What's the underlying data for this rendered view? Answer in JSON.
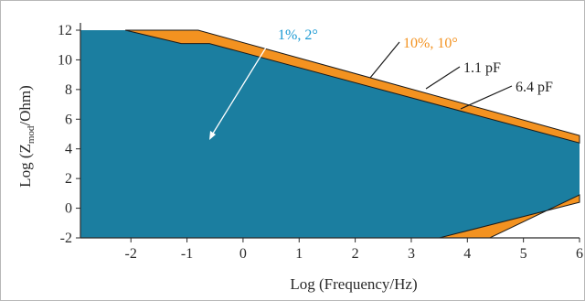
{
  "chart_data": {
    "type": "area",
    "xlabel": "Log (Frequency/Hz)",
    "ylabel_main": "Log (Z",
    "ylabel_sub": "mod",
    "ylabel_end": "/Ohm)",
    "xlim": [
      -2.9,
      6
    ],
    "ylim": [
      -2,
      12
    ],
    "xticks": [
      -2,
      -1,
      0,
      1,
      2,
      3,
      4,
      5,
      6
    ],
    "yticks": [
      -2,
      0,
      2,
      4,
      6,
      8,
      10,
      12
    ],
    "series": [
      {
        "name": "1%, 2°",
        "color": "#1b7ea0",
        "polygon": [
          [
            -2.9,
            12
          ],
          [
            -2.1,
            12
          ],
          [
            -1.1,
            11.1
          ],
          [
            -0.6,
            11.1
          ],
          [
            6,
            4.4
          ],
          [
            6,
            0.4
          ],
          [
            3.5,
            -2
          ],
          [
            -2.9,
            -2
          ]
        ]
      },
      {
        "name": "10%, 10°",
        "color": "#f39220",
        "polygon_upper": [
          [
            -2.1,
            12
          ],
          [
            -0.8,
            12
          ],
          [
            6,
            4.9
          ],
          [
            6,
            4.4
          ],
          [
            -0.6,
            11.1
          ],
          [
            -1.1,
            11.1
          ]
        ],
        "polygon_lower": [
          [
            3.5,
            -2
          ],
          [
            6,
            0.4
          ],
          [
            6,
            0.9
          ],
          [
            4.4,
            -2
          ]
        ]
      }
    ],
    "annotations": [
      {
        "text": "1%, 2°",
        "color": "#1b9ad3"
      },
      {
        "text": "10%, 10°",
        "color": "#f39220"
      },
      {
        "text": "1.1 pF",
        "color": "#222222"
      },
      {
        "text": "6.4 pF",
        "color": "#222222"
      }
    ],
    "colors": {
      "inner": "#1b7ea0",
      "outer": "#f39220",
      "outline": "#1a1a1a",
      "arrow_light": "#ffffff"
    },
    "grid": false
  }
}
